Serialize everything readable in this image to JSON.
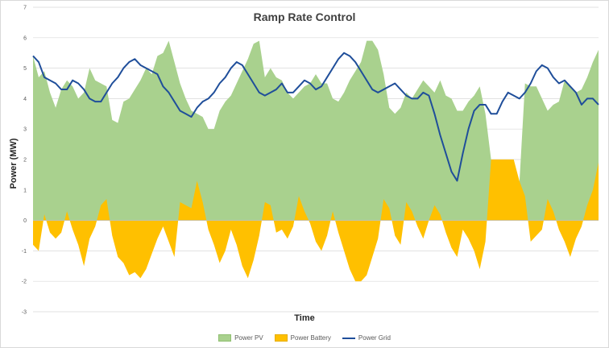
{
  "chart_data": {
    "type": "area",
    "title": "Ramp Rate Control",
    "xlabel": "Time",
    "ylabel": "Power (MW)",
    "ylim": [
      -3,
      7
    ],
    "yticks": [
      -3,
      -2,
      -1,
      0,
      1,
      2,
      3,
      4,
      5,
      6,
      7
    ],
    "grid": true,
    "legend_position": "bottom",
    "x": [
      0,
      1,
      2,
      3,
      4,
      5,
      6,
      7,
      8,
      9,
      10,
      11,
      12,
      13,
      14,
      15,
      16,
      17,
      18,
      19,
      20,
      21,
      22,
      23,
      24,
      25,
      26,
      27,
      28,
      29,
      30,
      31,
      32,
      33,
      34,
      35,
      36,
      37,
      38,
      39,
      40,
      41,
      42,
      43,
      44,
      45,
      46,
      47,
      48,
      49,
      50,
      51,
      52,
      53,
      54,
      55,
      56,
      57,
      58,
      59,
      60,
      61,
      62,
      63,
      64,
      65,
      66,
      67,
      68,
      69,
      70,
      71,
      72,
      73,
      74,
      75,
      76,
      77,
      78,
      79,
      80,
      81,
      82,
      83,
      84,
      85,
      86,
      87,
      88,
      89,
      90,
      91,
      92,
      93,
      94,
      95,
      96,
      97,
      98,
      99,
      100
    ],
    "series": [
      {
        "name": "Power PV",
        "kind": "area",
        "color": "#a9d18e",
        "values": [
          5.4,
          4.7,
          4.9,
          4.2,
          3.7,
          4.3,
          4.6,
          4.4,
          4.0,
          4.2,
          5.0,
          4.6,
          4.5,
          4.4,
          3.3,
          3.2,
          3.9,
          4.0,
          4.3,
          4.6,
          5.0,
          4.8,
          5.4,
          5.5,
          5.9,
          5.2,
          4.5,
          4.0,
          3.6,
          3.5,
          3.4,
          3.0,
          3.0,
          3.6,
          3.9,
          4.1,
          4.5,
          4.9,
          5.3,
          5.8,
          5.9,
          4.7,
          5.0,
          4.7,
          4.6,
          4.2,
          4.0,
          4.2,
          4.4,
          4.5,
          4.8,
          4.5,
          4.5,
          4.0,
          3.9,
          4.2,
          4.6,
          4.9,
          5.2,
          5.9,
          5.9,
          5.6,
          4.8,
          3.7,
          3.5,
          3.7,
          4.2,
          4.0,
          4.3,
          4.6,
          4.4,
          4.2,
          4.6,
          4.1,
          4.0,
          3.6,
          3.6,
          3.9,
          4.1,
          4.4,
          3.5,
          2.0,
          2.0,
          2.0,
          2.0,
          2.0,
          1.2,
          4.5,
          4.4,
          4.4,
          4.0,
          3.6,
          3.8,
          3.9,
          4.6,
          4.4,
          4.2,
          4.3,
          4.7,
          5.2,
          5.6
        ]
      },
      {
        "name": "Power Battery",
        "kind": "area",
        "color": "#ffc000",
        "values": [
          -0.8,
          -1.0,
          0.2,
          -0.4,
          -0.6,
          -0.4,
          0.3,
          -0.3,
          -0.8,
          -1.5,
          -0.6,
          -0.2,
          0.5,
          0.7,
          -0.5,
          -1.2,
          -1.4,
          -1.8,
          -1.7,
          -1.9,
          -1.6,
          -1.1,
          -0.6,
          -0.2,
          -0.7,
          -1.2,
          0.6,
          0.5,
          0.4,
          1.3,
          0.6,
          -0.3,
          -0.8,
          -1.4,
          -1.0,
          -0.3,
          -0.8,
          -1.5,
          -1.9,
          -1.3,
          -0.5,
          0.6,
          0.5,
          -0.4,
          -0.3,
          -0.6,
          -0.2,
          0.8,
          0.3,
          -0.1,
          -0.7,
          -1.0,
          -0.5,
          0.3,
          -0.4,
          -1.0,
          -1.6,
          -2.0,
          -2.0,
          -1.8,
          -1.2,
          -0.6,
          0.7,
          0.4,
          -0.5,
          -0.8,
          0.6,
          0.3,
          -0.2,
          -0.6,
          0.0,
          0.5,
          0.2,
          -0.4,
          -0.9,
          -1.2,
          -0.3,
          -0.6,
          -1.0,
          -1.6,
          -0.7,
          2.0,
          2.0,
          2.0,
          2.0,
          2.0,
          1.3,
          0.8,
          -0.7,
          -0.5,
          -0.3,
          0.7,
          0.3,
          -0.3,
          -0.7,
          -1.2,
          -0.6,
          -0.2,
          0.5,
          1.0,
          1.9
        ]
      },
      {
        "name": "Power Grid",
        "kind": "line",
        "color": "#1f4e9a",
        "values": [
          5.4,
          5.2,
          4.7,
          4.6,
          4.5,
          4.3,
          4.3,
          4.6,
          4.5,
          4.3,
          4.0,
          3.9,
          3.9,
          4.2,
          4.5,
          4.7,
          5.0,
          5.2,
          5.3,
          5.1,
          5.0,
          4.9,
          4.8,
          4.4,
          4.2,
          3.9,
          3.6,
          3.5,
          3.4,
          3.7,
          3.9,
          4.0,
          4.2,
          4.5,
          4.7,
          5.0,
          5.2,
          5.1,
          4.8,
          4.5,
          4.2,
          4.1,
          4.2,
          4.3,
          4.5,
          4.2,
          4.2,
          4.4,
          4.6,
          4.5,
          4.3,
          4.4,
          4.7,
          5.0,
          5.3,
          5.5,
          5.4,
          5.2,
          4.9,
          4.6,
          4.3,
          4.2,
          4.3,
          4.4,
          4.5,
          4.3,
          4.1,
          4.0,
          4.0,
          4.2,
          4.1,
          3.5,
          2.8,
          2.2,
          1.6,
          1.3,
          2.2,
          3.0,
          3.6,
          3.8,
          3.8,
          3.5,
          3.5,
          3.9,
          4.2,
          4.1,
          4.0,
          4.2,
          4.5,
          4.9,
          5.1,
          5.0,
          4.7,
          4.5,
          4.6,
          4.4,
          4.2,
          3.8,
          4.0,
          4.0,
          3.8
        ]
      }
    ]
  },
  "legend": {
    "items": [
      {
        "label": "Power PV"
      },
      {
        "label": "Power Battery"
      },
      {
        "label": "Power Grid"
      }
    ]
  }
}
